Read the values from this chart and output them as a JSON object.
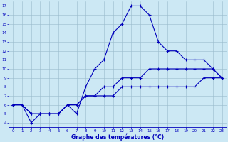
{
  "xlabel": "Graphe des températures (°C)",
  "bg_color": "#cce8f4",
  "line_color": "#0000bb",
  "grid_color": "#99bbcc",
  "xlim": [
    -0.5,
    23.5
  ],
  "ylim": [
    3.5,
    17.5
  ],
  "xticks": [
    0,
    1,
    2,
    3,
    4,
    5,
    6,
    7,
    8,
    9,
    10,
    11,
    12,
    13,
    14,
    15,
    16,
    17,
    18,
    19,
    20,
    21,
    22,
    23
  ],
  "yticks": [
    4,
    5,
    6,
    7,
    8,
    9,
    10,
    11,
    12,
    13,
    14,
    15,
    16,
    17
  ],
  "line1_x": [
    0,
    1,
    2,
    3,
    4,
    5,
    6,
    7,
    8,
    9,
    10,
    11,
    12,
    13,
    14,
    15,
    16,
    17,
    18,
    19,
    20,
    21,
    22,
    23
  ],
  "line1_y": [
    6,
    6,
    4,
    5,
    5,
    5,
    6,
    5,
    8,
    10,
    11,
    14,
    15,
    17,
    17,
    16,
    13,
    12,
    12,
    11,
    11,
    11,
    10,
    9
  ],
  "line2_x": [
    0,
    1,
    2,
    3,
    4,
    5,
    6,
    7,
    8,
    9,
    10,
    11,
    12,
    13,
    14,
    15,
    16,
    17,
    18,
    19,
    20,
    21,
    22,
    23
  ],
  "line2_y": [
    6,
    6,
    5,
    5,
    5,
    5,
    6,
    6,
    7,
    7,
    8,
    8,
    9,
    9,
    9,
    10,
    10,
    10,
    10,
    10,
    10,
    10,
    10,
    9
  ],
  "line3_x": [
    0,
    1,
    2,
    3,
    4,
    5,
    6,
    7,
    8,
    9,
    10,
    11,
    12,
    13,
    14,
    15,
    16,
    17,
    18,
    19,
    20,
    21,
    22,
    23
  ],
  "line3_y": [
    6,
    6,
    5,
    5,
    5,
    5,
    6,
    6,
    7,
    7,
    7,
    7,
    8,
    8,
    8,
    8,
    8,
    8,
    8,
    8,
    8,
    9,
    9,
    9
  ],
  "marker": "+",
  "markersize": 3,
  "linewidth": 0.8
}
